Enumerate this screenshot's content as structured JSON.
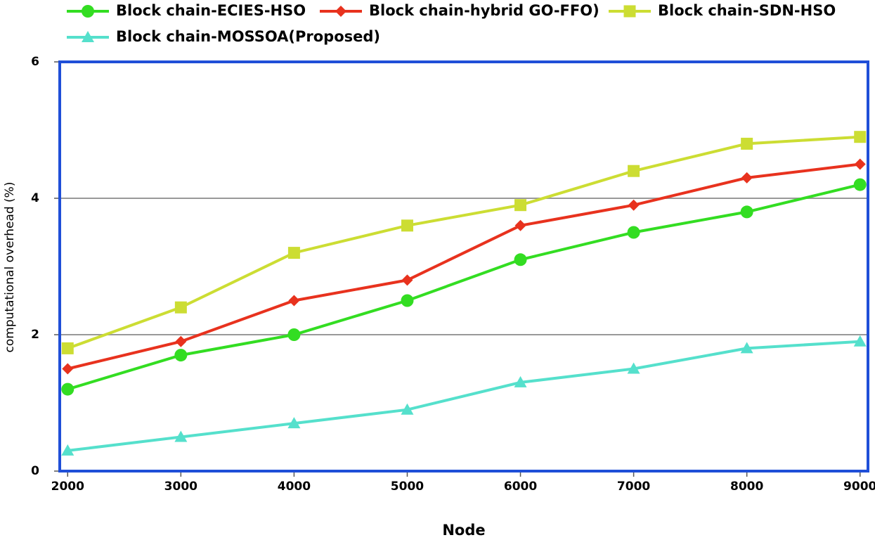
{
  "chart_data": {
    "type": "line",
    "x_label": "Node",
    "y_label": "computational overhead (%)",
    "x": [
      2000,
      3000,
      4000,
      5000,
      6000,
      7000,
      8000,
      9000
    ],
    "xlim": [
      1930,
      9070
    ],
    "xticks": [
      2000,
      3000,
      4000,
      5000,
      6000,
      7000,
      8000,
      9000
    ],
    "ylim": [
      0,
      6
    ],
    "yticks": [
      0,
      2,
      4,
      6
    ],
    "grid": true,
    "series": [
      {
        "name": "Block chain-ECIES-HSO",
        "color": "#33dd22",
        "marker": "circle",
        "values": [
          1.2,
          1.7,
          2.0,
          2.5,
          3.1,
          3.5,
          3.8,
          4.2
        ]
      },
      {
        "name": "Block chain-hybrid GO-FFO)",
        "color": "#e8321e",
        "marker": "diamond",
        "values": [
          1.5,
          1.9,
          2.5,
          2.8,
          3.6,
          3.9,
          4.3,
          4.5
        ]
      },
      {
        "name": "Block chain-SDN-HSO",
        "color": "#ccdd33",
        "marker": "square",
        "values": [
          1.8,
          2.4,
          3.2,
          3.6,
          3.9,
          4.4,
          4.8,
          4.9
        ]
      },
      {
        "name": "Block chain-MOSSOA(Proposed)",
        "color": "#55e0cc",
        "marker": "triangle",
        "values": [
          0.3,
          0.5,
          0.7,
          0.9,
          1.3,
          1.5,
          1.8,
          1.9
        ]
      }
    ]
  }
}
